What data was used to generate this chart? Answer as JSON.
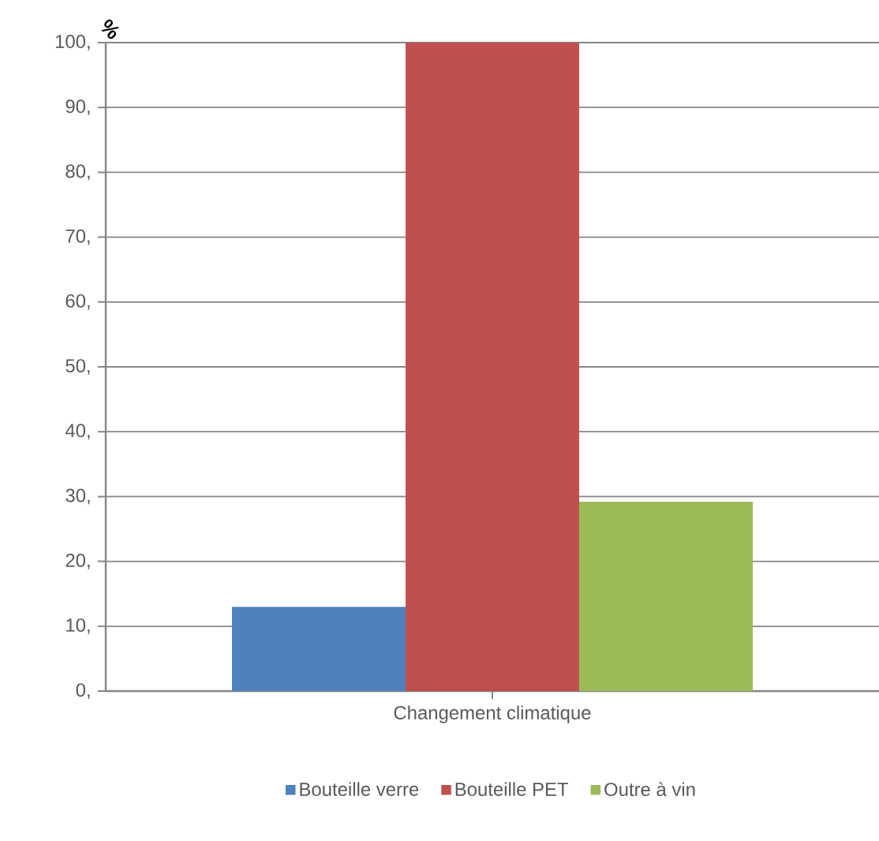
{
  "chart_data": {
    "type": "bar",
    "ylabel": "%",
    "categories": [
      "Changement climatique"
    ],
    "series": [
      {
        "name": "Bouteille verre",
        "color": "#4f81bd",
        "values": [
          13.0
        ]
      },
      {
        "name": "Bouteille PET",
        "color": "#c0504d",
        "values": [
          100
        ]
      },
      {
        "name": "Outre à vin",
        "color": "#9bbb59",
        "values": [
          29.2
        ]
      }
    ],
    "ylim": [
      0,
      100
    ],
    "yticks": [
      {
        "value": 0,
        "label": "0,"
      },
      {
        "value": 10,
        "label": "10,"
      },
      {
        "value": 20,
        "label": "20,"
      },
      {
        "value": 30,
        "label": "30,"
      },
      {
        "value": 40,
        "label": "40,"
      },
      {
        "value": 50,
        "label": "50,"
      },
      {
        "value": 60,
        "label": "60,"
      },
      {
        "value": 70,
        "label": "70,"
      },
      {
        "value": 80,
        "label": "80,"
      },
      {
        "value": 90,
        "label": "90,"
      },
      {
        "value": 100,
        "label": "100,"
      }
    ],
    "grid": "y",
    "legend": "bottom"
  }
}
